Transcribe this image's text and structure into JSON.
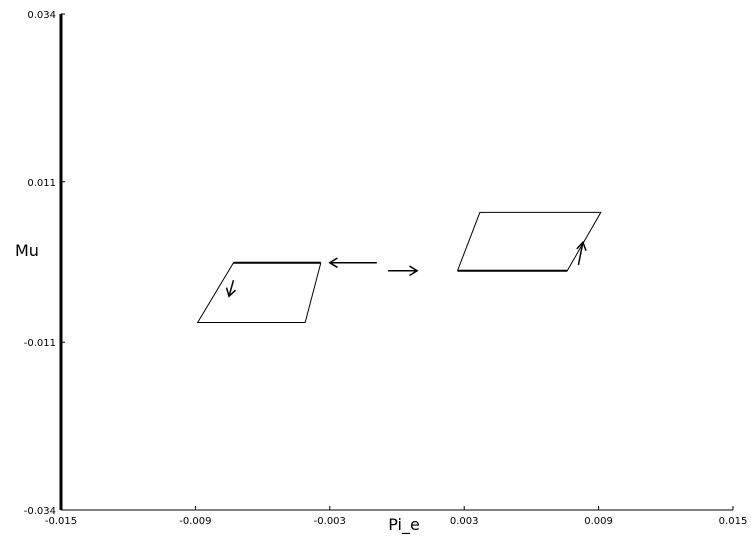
{
  "chart_data": {
    "type": "line",
    "title": "",
    "xlabel": "Pi_e",
    "ylabel": "Mu",
    "xlim": [
      -0.015,
      0.015
    ],
    "ylim": [
      -0.034,
      0.034
    ],
    "x_ticks": [
      "-0.015",
      "-0.009",
      "-0.003",
      "0.003",
      "0.009",
      "0.015"
    ],
    "x_tick_values": [
      -0.015,
      -0.009,
      -0.003,
      0.003,
      0.009,
      0.015
    ],
    "y_ticks": [
      "0.034",
      "0.011",
      "-0.011",
      "-0.034"
    ],
    "y_tick_values": [
      0.034,
      0.011,
      -0.011,
      -0.034
    ],
    "grid": false,
    "series": [
      {
        "x": [
          -0.0034,
          -0.0073,
          -0.0089,
          -0.0041,
          -0.0034
        ],
        "y": [
          -0.0001,
          -0.0001,
          -0.0083,
          -0.0083,
          -0.0001
        ]
      },
      {
        "x": [
          0.0027,
          0.0076,
          0.0091,
          0.0037,
          0.0027
        ],
        "y": [
          -0.0012,
          -0.0012,
          0.0068,
          0.0068,
          -0.0012
        ]
      }
    ],
    "arrows": [
      {
        "from": [
          -0.0009,
          -0.0001
        ],
        "to": [
          -0.003,
          -0.0001
        ]
      },
      {
        "from": [
          -0.0073,
          -0.0025
        ],
        "to": [
          -0.0075,
          -0.0047
        ]
      },
      {
        "from": [
          -0.0004,
          -0.0012
        ],
        "to": [
          0.0009,
          -0.0012
        ]
      },
      {
        "from": [
          0.0081,
          -0.0004
        ],
        "to": [
          0.0083,
          0.0027
        ]
      }
    ]
  }
}
